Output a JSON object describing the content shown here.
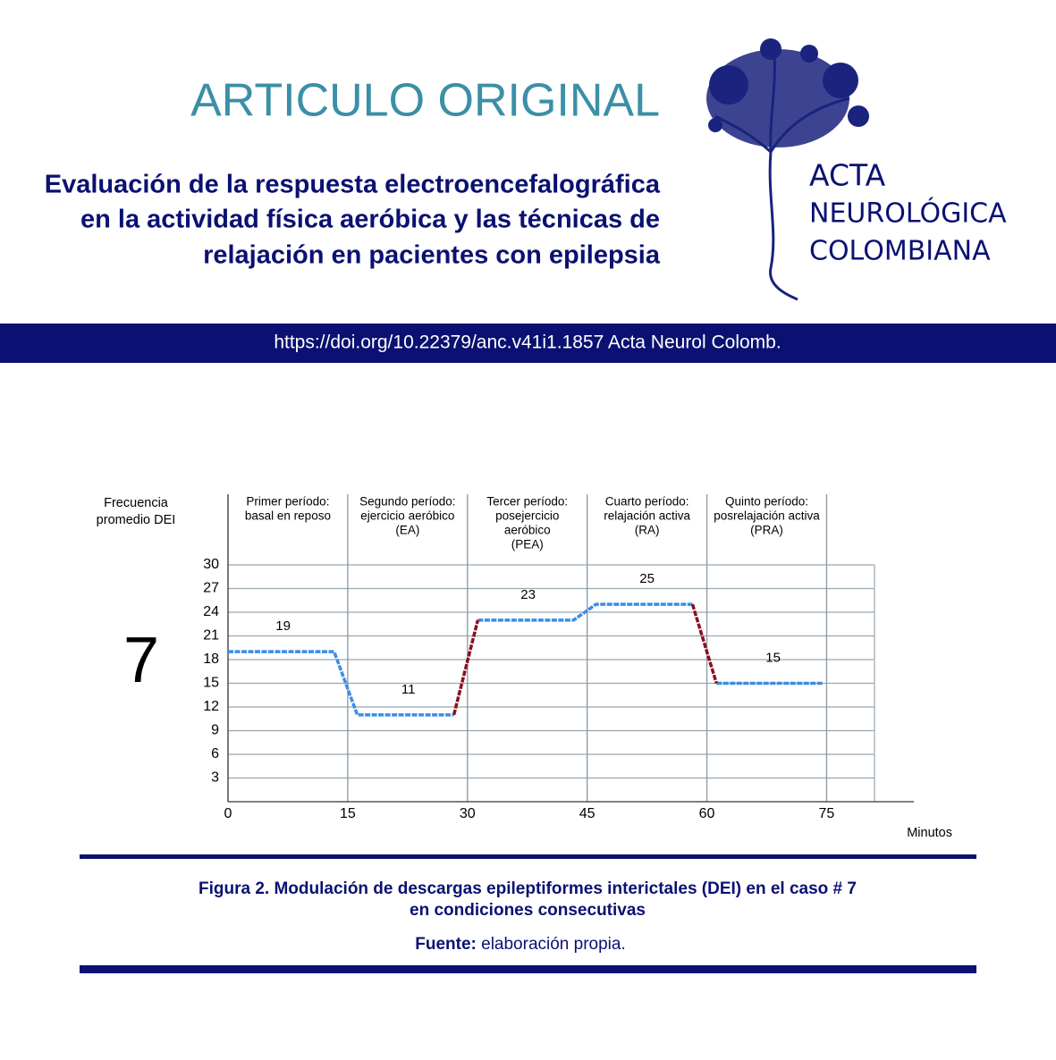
{
  "header": {
    "section": "ARTICULO ORIGINAL",
    "title": [
      "Evaluación de la respuesta electroencefalográfica",
      "en la actividad física aeróbica y las técnicas de",
      "relajación en pacientes con epilepsia"
    ],
    "journal": [
      "ACTA",
      "NEUROLÓGICA",
      "COLOMBIANA"
    ]
  },
  "doi": "https://doi.org/10.22379/anc.v41i1.1857 Acta Neurol Colomb.",
  "chart_data": {
    "type": "line",
    "panel_label": "7",
    "y_label": [
      "Frecuencia",
      "promedio DEI"
    ],
    "x_label": "Minutos",
    "xlim": [
      0,
      81
    ],
    "xticks": [
      0,
      15,
      30,
      45,
      60,
      75
    ],
    "ylim": [
      0,
      30
    ],
    "yticks": [
      3,
      6,
      9,
      12,
      15,
      18,
      21,
      24,
      27,
      30
    ],
    "grid": true,
    "periods": [
      [
        "Primer período:",
        "basal en reposo"
      ],
      [
        "Segundo período:",
        "ejercicio aeróbico",
        "(EA)"
      ],
      [
        "Tercer período:",
        "posejercicio",
        "aeróbico",
        "(PEA)"
      ],
      [
        "Cuarto período:",
        "relajación activa",
        "(RA)"
      ],
      [
        "Quinto período:",
        "posrelajación activa",
        "(PRA)"
      ]
    ],
    "series": [
      {
        "color": "#3a8ee6",
        "x": [
          0,
          13.3,
          16.2,
          28.3,
          29.8,
          31.3,
          43.3,
          46.1,
          58.2,
          59.7,
          61.2,
          74.6
        ],
        "values": [
          19,
          19,
          11,
          11,
          null,
          23,
          23,
          25,
          25,
          null,
          15,
          15
        ]
      },
      {
        "color": "#8b1020",
        "x": [
          28.3,
          31.3,
          45,
          58.2,
          61.2
        ],
        "values": [
          11,
          23,
          null,
          25,
          15
        ]
      }
    ],
    "data_labels": [
      {
        "x": 6.9,
        "value": 19
      },
      {
        "x": 22.6,
        "value": 11
      },
      {
        "x": 37.6,
        "value": 23
      },
      {
        "x": 52.5,
        "value": 25
      },
      {
        "x": 68.3,
        "value": 15
      }
    ]
  },
  "caption": [
    "Figura 2. Modulación de descargas epileptiformes interictales (DEI) en el caso # 7",
    "en condiciones consecutivas"
  ],
  "source": {
    "label": "Fuente:",
    "text": " elaboración propia."
  }
}
